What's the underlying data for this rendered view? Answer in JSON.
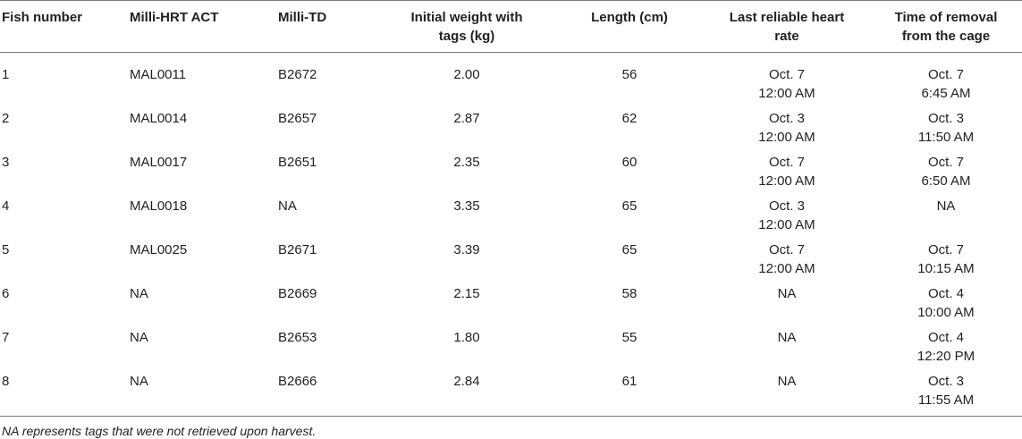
{
  "table": {
    "headers": [
      [
        "Fish number"
      ],
      [
        "Milli-HRT ACT"
      ],
      [
        "Milli-TD"
      ],
      [
        "Initial weight with",
        "tags (kg)"
      ],
      [
        "Length (cm)"
      ],
      [
        "Last reliable heart",
        "rate"
      ],
      [
        "Time of removal",
        "from the cage"
      ]
    ],
    "rows": [
      {
        "fish": "1",
        "hrt": "MAL0011",
        "td": "B2672",
        "weight": "2.00",
        "length": "56",
        "last_hr": [
          "Oct. 7",
          "12:00 AM"
        ],
        "removal": [
          "Oct. 7",
          "6:45 AM"
        ]
      },
      {
        "fish": "2",
        "hrt": "MAL0014",
        "td": "B2657",
        "weight": "2.87",
        "length": "62",
        "last_hr": [
          "Oct. 3",
          "12:00 AM"
        ],
        "removal": [
          "Oct. 3",
          "11:50 AM"
        ]
      },
      {
        "fish": "3",
        "hrt": "MAL0017",
        "td": "B2651",
        "weight": "2.35",
        "length": "60",
        "last_hr": [
          "Oct. 7",
          "12:00 AM"
        ],
        "removal": [
          "Oct. 7",
          "6:50 AM"
        ]
      },
      {
        "fish": "4",
        "hrt": "MAL0018",
        "td": "NA",
        "weight": "3.35",
        "length": "65",
        "last_hr": [
          "Oct. 3",
          "12:00 AM"
        ],
        "removal": [
          "NA"
        ]
      },
      {
        "fish": "5",
        "hrt": "MAL0025",
        "td": "B2671",
        "weight": "3.39",
        "length": "65",
        "last_hr": [
          "Oct. 7",
          "12:00 AM"
        ],
        "removal": [
          "Oct. 7",
          "10:15 AM"
        ]
      },
      {
        "fish": "6",
        "hrt": "NA",
        "td": "B2669",
        "weight": "2.15",
        "length": "58",
        "last_hr": [
          "NA"
        ],
        "removal": [
          "Oct. 4",
          "10:00 AM"
        ]
      },
      {
        "fish": "7",
        "hrt": "NA",
        "td": "B2653",
        "weight": "1.80",
        "length": "55",
        "last_hr": [
          "NA"
        ],
        "removal": [
          "Oct. 4",
          "12:20 PM"
        ]
      },
      {
        "fish": "8",
        "hrt": "NA",
        "td": "B2666",
        "weight": "2.84",
        "length": "61",
        "last_hr": [
          "NA"
        ],
        "removal": [
          "Oct. 3",
          "11:55 AM"
        ]
      }
    ]
  },
  "footnote": "NA represents tags that were not retrieved upon harvest."
}
